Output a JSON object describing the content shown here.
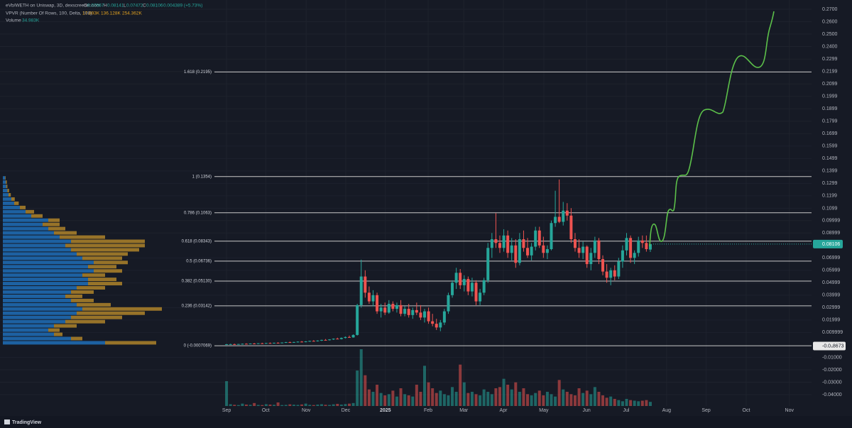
{
  "chart_data": {
    "type": "candlestick",
    "title": "eVb/WETH on Uniswap, 3D, dexscreener.com",
    "ohlc_keys": [
      "O",
      "H",
      "L",
      "C"
    ],
    "change": "0.004389 (+5.73%)",
    "vpvr_title": "VPVR (Number Of Rows, 100, Delta, 100)",
    "vpvr_values": [
      "17.893K",
      "136.128K",
      "254.362K"
    ],
    "volume_title": "Volume",
    "volume_last_label": "34.983K",
    "brand": "TradingView",
    "up_color": "#26a69a",
    "down_color": "#ef5350",
    "xlim": [
      -57.2,
      147.7
    ],
    "ylim": [
      -0.048,
      0.2774
    ],
    "xticks": [
      {
        "value": 0,
        "label": "Sep"
      },
      {
        "value": 9.9,
        "label": "Oct"
      },
      {
        "value": 20.1,
        "label": "Nov"
      },
      {
        "value": 30.1,
        "label": "Dec"
      },
      {
        "value": 40.1,
        "label": "2025"
      },
      {
        "value": 50.9,
        "label": "Feb"
      },
      {
        "value": 59.9,
        "label": "Mar"
      },
      {
        "value": 69.9,
        "label": "Apr"
      },
      {
        "value": 80.1,
        "label": "May"
      },
      {
        "value": 90.9,
        "label": "Jun"
      },
      {
        "value": 100.9,
        "label": "Jul"
      },
      {
        "value": 111.1,
        "label": "Aug"
      },
      {
        "value": 121.1,
        "label": "Sep"
      },
      {
        "value": 131.2,
        "label": "Oct"
      },
      {
        "value": 142.1,
        "label": "Nov"
      }
    ],
    "yticks": [
      {
        "value": 0.27,
        "label": "0.2700"
      },
      {
        "value": 0.26,
        "label": "0.2600"
      },
      {
        "value": 0.25,
        "label": "0.2500"
      },
      {
        "value": 0.24,
        "label": "0.2400"
      },
      {
        "value": 0.2299,
        "label": "0.2299"
      },
      {
        "value": 0.2199,
        "label": "0.2199"
      },
      {
        "value": 0.2099,
        "label": "0.2099"
      },
      {
        "value": 0.1999,
        "label": "0.1999"
      },
      {
        "value": 0.1899,
        "label": "0.1899"
      },
      {
        "value": 0.1799,
        "label": "0.1799"
      },
      {
        "value": 0.1699,
        "label": "0.1699"
      },
      {
        "value": 0.1599,
        "label": "0.1599"
      },
      {
        "value": 0.1499,
        "label": "0.1499"
      },
      {
        "value": 0.1399,
        "label": "0.1399"
      },
      {
        "value": 0.1299,
        "label": "0.1299"
      },
      {
        "value": 0.1199,
        "label": "0.1199"
      },
      {
        "value": 0.1099,
        "label": "0.1099"
      },
      {
        "value": 0.09999,
        "label": "0.09999"
      },
      {
        "value": 0.08999,
        "label": "0.08999"
      },
      {
        "value": 0.06999,
        "label": "0.06999"
      },
      {
        "value": 0.05999,
        "label": "0.05999"
      },
      {
        "value": 0.04999,
        "label": "0.04999"
      },
      {
        "value": 0.03999,
        "label": "0.03999"
      },
      {
        "value": 0.02999,
        "label": "0.02999"
      },
      {
        "value": 0.01999,
        "label": "0.01999"
      },
      {
        "value": 0.009999,
        "label": "0.009999"
      },
      {
        "value": -0.01,
        "label": "-0.01000"
      },
      {
        "value": -0.02,
        "label": "-0.02000"
      },
      {
        "value": -0.03,
        "label": "-0.03000"
      },
      {
        "value": -0.04,
        "label": "-0.04000"
      }
    ],
    "price_marker": {
      "value": -0.0008673,
      "label": "-0.0₃8673"
    },
    "fibs": [
      {
        "label": "1.618 (0.2195)",
        "value": 0.2195
      },
      {
        "label": "1 (0.1354)",
        "value": 0.1354
      },
      {
        "label": "0.786 (0.1063)",
        "value": 0.1063
      },
      {
        "label": "0.618 (0.08343)",
        "value": 0.08343
      },
      {
        "label": "0.5 (0.06736)",
        "value": 0.06736
      },
      {
        "label": "0.382 (0.05130)",
        "value": 0.0513
      },
      {
        "label": "0.236 (0.03142)",
        "value": 0.03142
      },
      {
        "label": "0 (-0.0007069)",
        "value": -0.0007069
      }
    ],
    "candles": [
      [
        0.0003,
        0.0008,
        0.0,
        0.0005
      ],
      [
        0.0005,
        0.0009,
        0.0002,
        0.0006
      ],
      [
        0.0006,
        0.001,
        0.0003,
        0.0004
      ],
      [
        0.0004,
        0.0008,
        0.0002,
        0.0007
      ],
      [
        0.0007,
        0.0011,
        0.0004,
        0.0009
      ],
      [
        0.0009,
        0.0013,
        0.0006,
        0.0008
      ],
      [
        0.0008,
        0.0012,
        0.0005,
        0.0011
      ],
      [
        0.0011,
        0.0015,
        0.0008,
        0.001
      ],
      [
        0.001,
        0.0014,
        0.0007,
        0.0013
      ],
      [
        0.0013,
        0.0017,
        0.001,
        0.0012
      ],
      [
        0.0012,
        0.0016,
        0.0009,
        0.0015
      ],
      [
        0.0015,
        0.0019,
        0.0012,
        0.0014
      ],
      [
        0.0014,
        0.0018,
        0.0011,
        0.0017
      ],
      [
        0.0017,
        0.0021,
        0.0014,
        0.0016
      ],
      [
        0.0016,
        0.002,
        0.0013,
        0.0019
      ],
      [
        0.0019,
        0.0024,
        0.0016,
        0.0022
      ],
      [
        0.0022,
        0.0026,
        0.0018,
        0.002
      ],
      [
        0.002,
        0.0025,
        0.0017,
        0.0023
      ],
      [
        0.0023,
        0.0028,
        0.002,
        0.0026
      ],
      [
        0.0026,
        0.0031,
        0.0022,
        0.0024
      ],
      [
        0.0024,
        0.003,
        0.0021,
        0.0028
      ],
      [
        0.0028,
        0.0034,
        0.0025,
        0.0032
      ],
      [
        0.0032,
        0.0038,
        0.0028,
        0.003
      ],
      [
        0.003,
        0.0037,
        0.0027,
        0.0035
      ],
      [
        0.0035,
        0.0042,
        0.0031,
        0.004
      ],
      [
        0.004,
        0.0047,
        0.0036,
        0.0038
      ],
      [
        0.0038,
        0.0046,
        0.0035,
        0.0044
      ],
      [
        0.0044,
        0.0052,
        0.004,
        0.005
      ],
      [
        0.005,
        0.0058,
        0.0045,
        0.0047
      ],
      [
        0.0047,
        0.006,
        0.0044,
        0.0056
      ],
      [
        0.0056,
        0.0068,
        0.0052,
        0.0063
      ],
      [
        0.0063,
        0.0075,
        0.0058,
        0.006
      ],
      [
        0.006,
        0.0085,
        0.0058,
        0.008
      ],
      [
        0.008,
        0.033,
        0.0075,
        0.032
      ],
      [
        0.032,
        0.0685,
        0.03,
        0.055
      ],
      [
        0.055,
        0.06,
        0.038,
        0.042
      ],
      [
        0.042,
        0.047,
        0.033,
        0.035
      ],
      [
        0.035,
        0.044,
        0.031,
        0.04
      ],
      [
        0.04,
        0.042,
        0.025,
        0.027
      ],
      [
        0.027,
        0.033,
        0.022,
        0.03
      ],
      [
        0.03,
        0.034,
        0.024,
        0.026
      ],
      [
        0.026,
        0.036,
        0.025,
        0.033
      ],
      [
        0.033,
        0.035,
        0.027,
        0.029
      ],
      [
        0.029,
        0.034,
        0.026,
        0.032
      ],
      [
        0.032,
        0.036,
        0.023,
        0.025
      ],
      [
        0.025,
        0.031,
        0.023,
        0.029
      ],
      [
        0.029,
        0.033,
        0.022,
        0.024
      ],
      [
        0.024,
        0.03,
        0.021,
        0.028
      ],
      [
        0.028,
        0.034,
        0.024,
        0.026
      ],
      [
        0.026,
        0.032,
        0.02,
        0.022
      ],
      [
        0.022,
        0.029,
        0.018,
        0.027
      ],
      [
        0.027,
        0.03,
        0.017,
        0.019
      ],
      [
        0.019,
        0.025,
        0.015,
        0.017
      ],
      [
        0.017,
        0.021,
        0.012,
        0.014
      ],
      [
        0.014,
        0.02,
        0.011,
        0.018
      ],
      [
        0.018,
        0.029,
        0.016,
        0.027
      ],
      [
        0.027,
        0.042,
        0.025,
        0.04
      ],
      [
        0.04,
        0.052,
        0.038,
        0.05
      ],
      [
        0.05,
        0.062,
        0.045,
        0.058
      ],
      [
        0.058,
        0.061,
        0.045,
        0.048
      ],
      [
        0.048,
        0.056,
        0.043,
        0.053
      ],
      [
        0.053,
        0.055,
        0.04,
        0.043
      ],
      [
        0.043,
        0.054,
        0.039,
        0.05
      ],
      [
        0.05,
        0.052,
        0.032,
        0.035
      ],
      [
        0.035,
        0.045,
        0.032,
        0.042
      ],
      [
        0.042,
        0.054,
        0.04,
        0.052
      ],
      [
        0.052,
        0.082,
        0.05,
        0.078
      ],
      [
        0.078,
        0.09,
        0.07,
        0.085
      ],
      [
        0.085,
        0.106,
        0.078,
        0.082
      ],
      [
        0.082,
        0.088,
        0.074,
        0.078
      ],
      [
        0.078,
        0.093,
        0.075,
        0.088
      ],
      [
        0.088,
        0.092,
        0.07,
        0.074
      ],
      [
        0.074,
        0.086,
        0.068,
        0.08
      ],
      [
        0.08,
        0.085,
        0.062,
        0.066
      ],
      [
        0.066,
        0.09,
        0.064,
        0.085
      ],
      [
        0.085,
        0.092,
        0.075,
        0.078
      ],
      [
        0.078,
        0.086,
        0.07,
        0.072
      ],
      [
        0.072,
        0.082,
        0.068,
        0.079
      ],
      [
        0.079,
        0.095,
        0.076,
        0.092
      ],
      [
        0.092,
        0.095,
        0.078,
        0.08
      ],
      [
        0.08,
        0.087,
        0.07,
        0.074
      ],
      [
        0.074,
        0.08,
        0.069,
        0.077
      ],
      [
        0.077,
        0.1,
        0.076,
        0.098
      ],
      [
        0.098,
        0.124,
        0.095,
        0.103
      ],
      [
        0.103,
        0.133,
        0.098,
        0.099
      ],
      [
        0.099,
        0.115,
        0.096,
        0.108
      ],
      [
        0.108,
        0.114,
        0.1,
        0.104
      ],
      [
        0.104,
        0.11,
        0.082,
        0.085
      ],
      [
        0.085,
        0.09,
        0.075,
        0.078
      ],
      [
        0.078,
        0.085,
        0.07,
        0.074
      ],
      [
        0.074,
        0.083,
        0.069,
        0.079
      ],
      [
        0.079,
        0.08,
        0.062,
        0.065
      ],
      [
        0.065,
        0.078,
        0.06,
        0.074
      ],
      [
        0.074,
        0.087,
        0.07,
        0.084
      ],
      [
        0.084,
        0.086,
        0.065,
        0.069
      ],
      [
        0.069,
        0.072,
        0.056,
        0.059
      ],
      [
        0.059,
        0.065,
        0.05,
        0.054
      ],
      [
        0.054,
        0.062,
        0.048,
        0.06
      ],
      [
        0.06,
        0.064,
        0.052,
        0.055
      ],
      [
        0.055,
        0.07,
        0.053,
        0.067
      ],
      [
        0.067,
        0.08,
        0.062,
        0.076
      ],
      [
        0.076,
        0.09,
        0.072,
        0.086
      ],
      [
        0.086,
        0.088,
        0.066,
        0.07
      ],
      [
        0.07,
        0.076,
        0.065,
        0.074
      ],
      [
        0.074,
        0.087,
        0.071,
        0.084
      ],
      [
        0.084,
        0.088,
        0.078,
        0.082
      ],
      [
        0.082,
        0.088,
        0.075,
        0.077
      ],
      [
        0.07667,
        0.08141,
        0.07472,
        0.08106
      ]
    ],
    "volume": [
      210,
      15,
      10,
      8,
      20,
      12,
      10,
      25,
      9,
      8,
      15,
      12,
      10,
      30,
      8,
      9,
      14,
      11,
      9,
      13,
      20,
      10,
      8,
      12,
      15,
      10,
      9,
      14,
      18,
      12,
      16,
      20,
      25,
      300,
      480,
      260,
      140,
      120,
      180,
      110,
      90,
      100,
      130,
      80,
      150,
      100,
      90,
      80,
      180,
      120,
      340,
      200,
      150,
      110,
      130,
      100,
      90,
      160,
      120,
      350,
      200,
      110,
      120,
      100,
      90,
      140,
      120,
      100,
      150,
      160,
      230,
      180,
      140,
      200,
      120,
      150,
      100,
      90,
      110,
      130,
      90,
      120,
      100,
      80,
      220,
      140,
      120,
      100,
      90,
      150,
      110,
      130,
      100,
      160,
      120,
      90,
      70,
      80,
      60,
      50,
      40,
      60,
      50,
      45,
      40,
      45,
      50,
      34.983
    ],
    "volume_profile": {
      "prices": [
        0,
        0.0034,
        0.0068,
        0.0102,
        0.0136,
        0.017,
        0.0204,
        0.0238,
        0.0272,
        0.0306,
        0.034,
        0.0374,
        0.0408,
        0.0442,
        0.0476,
        0.051,
        0.0544,
        0.0578,
        0.0612,
        0.0646,
        0.068,
        0.0714,
        0.0748,
        0.0782,
        0.0816,
        0.085,
        0.0884,
        0.0918,
        0.0952,
        0.0986,
        0.102,
        0.1054,
        0.1088,
        0.1122,
        0.1156,
        0.119,
        0.1224,
        0.1258,
        0.1292,
        0.1326
      ],
      "up": [
        180,
        120,
        90,
        80,
        90,
        110,
        120,
        130,
        140,
        130,
        120,
        110,
        120,
        130,
        150,
        150,
        140,
        160,
        150,
        160,
        140,
        130,
        120,
        110,
        120,
        100,
        90,
        80,
        70,
        80,
        50,
        40,
        30,
        20,
        15,
        10,
        8,
        6,
        5,
        4
      ],
      "down": [
        90,
        20,
        15,
        20,
        40,
        70,
        90,
        120,
        140,
        60,
        40,
        30,
        40,
        50,
        60,
        50,
        40,
        50,
        50,
        60,
        70,
        90,
        120,
        140,
        130,
        80,
        40,
        30,
        30,
        20,
        20,
        15,
        10,
        8,
        6,
        4,
        3,
        2,
        2,
        1
      ],
      "up_color": "#1f6fb8",
      "down_color": "#b8892a"
    }
  }
}
